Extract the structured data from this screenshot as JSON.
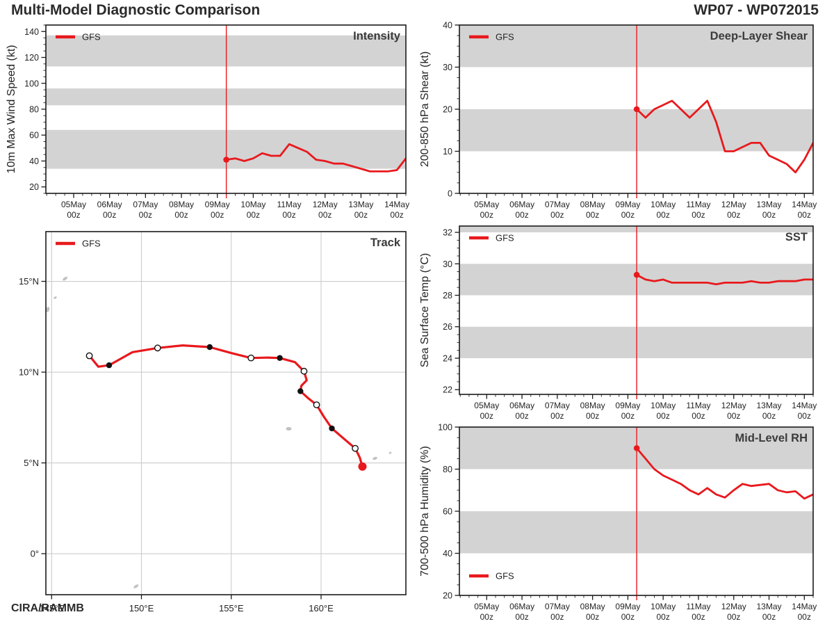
{
  "header": {
    "title": "Multi-Model Diagnostic Comparison",
    "storm_id": "WP07 - WP072015"
  },
  "footer": {
    "credit": "CIRA/RAMMB"
  },
  "legend_label": "GFS",
  "colors": {
    "model_red": "#e8191d",
    "band_gray": "#d3d3d3",
    "grid_gray": "#cccccc",
    "land_gray": "#c2c2c2",
    "axis_black": "#1a1a1a",
    "text_dark": "#242424",
    "title_gray": "#3b3b3b"
  },
  "time_axis": {
    "day_labels": [
      "05May",
      "06May",
      "07May",
      "08May",
      "09May",
      "10May",
      "11May",
      "12May",
      "13May",
      "14May"
    ],
    "sub_label": "00z",
    "first_label_day": 5,
    "domain_days": [
      4.226,
      14.25
    ],
    "minor_step_days": 0.25,
    "init_day": 9.25,
    "init_label": "09May 06z"
  },
  "chart_data": [
    {
      "id": "intensity",
      "type": "line",
      "panel_title": "Intensity",
      "ylabel": "10m Max Wind Speed (kt)",
      "ylim": [
        15,
        145
      ],
      "yticks": [
        20,
        40,
        60,
        80,
        100,
        120,
        140
      ],
      "yminor_step": 5,
      "bands": [
        [
          34,
          64
        ],
        [
          83,
          96
        ],
        [
          113,
          137
        ]
      ],
      "legend_pos": "top-left",
      "series": [
        {
          "name": "GFS",
          "start": "09May 06z",
          "step_hours": 6,
          "values": [
            41,
            42,
            40,
            42,
            46,
            44,
            44,
            53,
            50,
            47,
            41,
            40,
            38,
            38,
            36,
            34,
            32,
            32,
            32,
            33,
            42
          ]
        }
      ]
    },
    {
      "id": "shear",
      "type": "line",
      "panel_title": "Deep-Layer Shear",
      "ylabel": "200-850 hPa Shear (kt)",
      "ylim": [
        0,
        40
      ],
      "yticks": [
        0,
        10,
        20,
        30,
        40
      ],
      "yminor_step": 2.5,
      "bands": [
        [
          10,
          20
        ],
        [
          30,
          40
        ]
      ],
      "legend_pos": "top-left",
      "series": [
        {
          "name": "GFS",
          "start": "09May 06z",
          "step_hours": 6,
          "values": [
            20,
            18,
            20,
            21,
            22,
            20,
            18,
            20,
            22,
            17,
            10,
            10,
            11,
            12,
            12,
            9,
            8,
            7,
            5,
            8,
            12
          ]
        }
      ]
    },
    {
      "id": "sst",
      "type": "line",
      "panel_title": "SST",
      "ylabel": "Sea Surface Temp (°C)",
      "ylim": [
        21.7,
        32.4
      ],
      "yticks": [
        22,
        24,
        26,
        28,
        30,
        32
      ],
      "yminor_step": 0.5,
      "bands": [
        [
          24,
          26
        ],
        [
          28,
          30
        ],
        [
          32,
          32.4
        ]
      ],
      "legend_pos": "top-left",
      "series": [
        {
          "name": "GFS",
          "start": "09May 06z",
          "step_hours": 6,
          "values": [
            29.3,
            29.0,
            28.9,
            29.0,
            28.8,
            28.8,
            28.8,
            28.8,
            28.8,
            28.7,
            28.8,
            28.8,
            28.8,
            28.9,
            28.8,
            28.8,
            28.9,
            28.9,
            28.9,
            29.0,
            29.0
          ]
        }
      ]
    },
    {
      "id": "rh",
      "type": "line",
      "panel_title": "Mid-Level RH",
      "ylabel": "700-500 hPa Humidity (%)",
      "ylim": [
        20,
        100
      ],
      "yticks": [
        20,
        40,
        60,
        80,
        100
      ],
      "yminor_step": 5,
      "bands": [
        [
          40,
          60
        ],
        [
          80,
          100
        ]
      ],
      "legend_pos": "bottom-left",
      "series": [
        {
          "name": "GFS",
          "start": "09May 06z",
          "step_hours": 6,
          "values": [
            90,
            85,
            80,
            77,
            75,
            73,
            70,
            68,
            71,
            68,
            66.5,
            70,
            73,
            72,
            72.5,
            73,
            70,
            69,
            69.5,
            66,
            68
          ]
        }
      ]
    },
    {
      "id": "track",
      "type": "track",
      "panel_title": "Track",
      "lon_range": [
        144.68,
        164.72
      ],
      "lat_range": [
        -2.26,
        17.74
      ],
      "lon_ticks": [
        {
          "value": 145,
          "label": "145°E"
        },
        {
          "value": 150,
          "label": "150°E"
        },
        {
          "value": 155,
          "label": "155°E"
        },
        {
          "value": 160,
          "label": "160°E"
        }
      ],
      "lat_ticks": [
        {
          "value": 0,
          "label": "0°"
        },
        {
          "value": 5,
          "label": "5°N"
        },
        {
          "value": 10,
          "label": "10°N"
        },
        {
          "value": 15,
          "label": "15°N"
        }
      ],
      "line": [
        [
          147.1,
          10.9
        ],
        [
          147.6,
          10.3
        ],
        [
          148.2,
          10.38
        ],
        [
          149.5,
          11.1
        ],
        [
          150.9,
          11.33
        ],
        [
          152.3,
          11.47
        ],
        [
          153.8,
          11.38
        ],
        [
          155.0,
          11.05
        ],
        [
          156.1,
          10.78
        ],
        [
          157.0,
          10.8
        ],
        [
          157.7,
          10.78
        ],
        [
          158.55,
          10.55
        ],
        [
          159.05,
          10.05
        ],
        [
          159.2,
          9.55
        ],
        [
          158.9,
          9.25
        ],
        [
          158.85,
          8.95
        ],
        [
          159.3,
          8.55
        ],
        [
          159.75,
          8.2
        ],
        [
          160.15,
          7.55
        ],
        [
          160.6,
          6.9
        ],
        [
          161.25,
          6.35
        ],
        [
          161.9,
          5.8
        ],
        [
          162.15,
          5.3
        ],
        [
          162.3,
          4.8
        ]
      ],
      "markers": {
        "open": [
          [
            147.1,
            10.9
          ],
          [
            150.9,
            11.33
          ],
          [
            156.1,
            10.78
          ],
          [
            159.05,
            10.05
          ],
          [
            159.75,
            8.2
          ],
          [
            161.9,
            5.8
          ]
        ],
        "filled": [
          [
            148.2,
            10.38
          ],
          [
            153.8,
            11.38
          ],
          [
            157.7,
            10.78
          ],
          [
            158.85,
            8.95
          ],
          [
            160.6,
            6.9
          ]
        ],
        "end": [
          162.3,
          4.8
        ]
      },
      "land": [
        [
          145.75,
          15.15,
          4,
          2,
          -35
        ],
        [
          145.2,
          14.1,
          2.5,
          1.5,
          -30
        ],
        [
          144.78,
          13.45,
          2.5,
          4,
          20
        ],
        [
          158.2,
          6.88,
          4,
          2.5,
          0
        ],
        [
          163.0,
          5.25,
          3.5,
          2,
          -20
        ],
        [
          163.85,
          5.55,
          2,
          1.3,
          -30
        ],
        [
          149.7,
          -1.8,
          4,
          2,
          -35
        ]
      ]
    }
  ]
}
